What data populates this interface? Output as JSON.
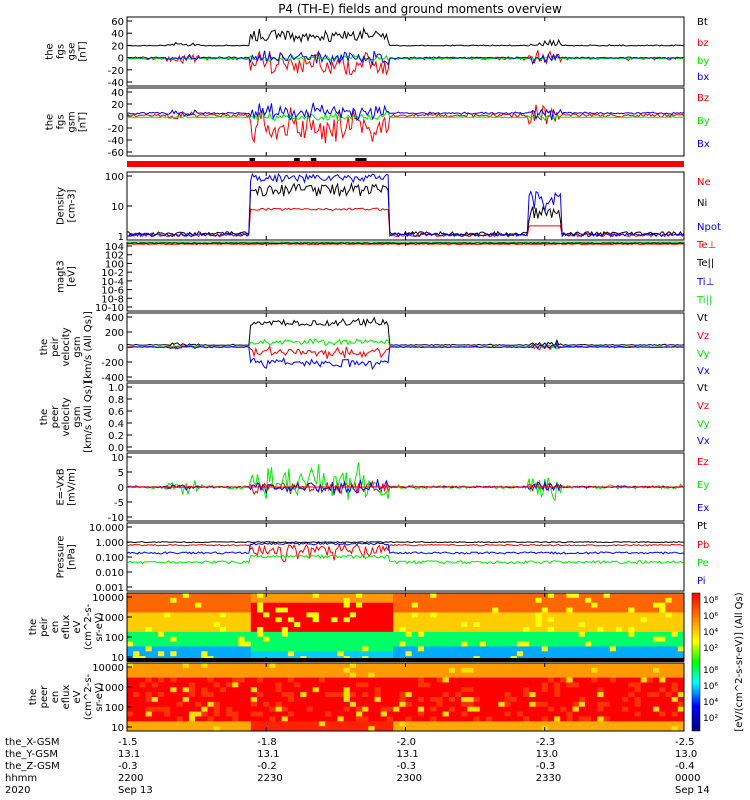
{
  "title": "P4 (TH-E) fields and ground moments overview",
  "colors": {
    "black": "#000000",
    "red": "#ff0000",
    "green": "#00ee00",
    "blue": "#0000ff"
  },
  "chart_data": [
    {
      "type": "line",
      "ylabel": [
        "the",
        "fgs",
        "gse",
        "[nT]"
      ],
      "yticks": [
        "60",
        "40",
        "20",
        "0",
        "-20",
        "-40"
      ],
      "ylim": [
        -40,
        60
      ],
      "legend": [
        {
          "name": "Bt",
          "color": "black"
        },
        {
          "name": "bz",
          "color": "red"
        },
        {
          "name": "by",
          "color": "green"
        },
        {
          "name": "bx",
          "color": "blue"
        }
      ]
    },
    {
      "type": "line",
      "ylabel": [
        "the",
        "fgs",
        "gsm",
        "[nT]"
      ],
      "yticks": [
        "40",
        "20",
        "0",
        "-20",
        "-40",
        "-60"
      ],
      "ylim": [
        -60,
        40
      ],
      "legend": [
        {
          "name": "Bz",
          "color": "red"
        },
        {
          "name": "By",
          "color": "green"
        },
        {
          "name": "Bx",
          "color": "blue"
        }
      ]
    },
    {
      "type": "line",
      "ylabel": [
        "Density",
        "[cm-3]"
      ],
      "yticks": [
        "100",
        "10",
        "1"
      ],
      "ylim": [
        1,
        200
      ],
      "log": true,
      "legend": [
        {
          "name": "Ne",
          "color": "red"
        },
        {
          "name": "Ni",
          "color": "black"
        },
        {
          "name": "Npot",
          "color": "blue"
        }
      ]
    },
    {
      "type": "line",
      "ylabel": [
        "magt3",
        "[eV]"
      ],
      "yticks": [
        "104",
        "102",
        "100",
        "10-2",
        "10-4",
        "10-6",
        "10-8",
        "10-10"
      ],
      "log": true,
      "legend": [
        {
          "name": "Te⊥",
          "color": "red"
        },
        {
          "name": "Te||",
          "color": "black"
        },
        {
          "name": "Ti⊥",
          "color": "blue"
        },
        {
          "name": "Ti||",
          "color": "green"
        }
      ]
    },
    {
      "type": "line",
      "ylabel": [
        "the",
        "peir",
        "velocity",
        "gsm",
        "[km/s (All Qs)]"
      ],
      "yticks": [
        "400",
        "200",
        "0",
        "-200",
        "-400"
      ],
      "ylim": [
        -400,
        400
      ],
      "legend": [
        {
          "name": "Vt",
          "color": "black"
        },
        {
          "name": "Vz",
          "color": "red"
        },
        {
          "name": "Vy",
          "color": "green"
        },
        {
          "name": "Vx",
          "color": "blue"
        }
      ]
    },
    {
      "type": "line",
      "ylabel": [
        "the",
        "peer",
        "velocity",
        "gsm",
        "[km/s (All Qs)]"
      ],
      "yticks": [
        "1.0",
        "0.8",
        "0.6",
        "0.4",
        "0.2",
        "0.0"
      ],
      "ylim": [
        0,
        1
      ],
      "legend": [
        {
          "name": "Vt",
          "color": "black"
        },
        {
          "name": "Vz",
          "color": "red"
        },
        {
          "name": "Vy",
          "color": "green"
        },
        {
          "name": "Vx",
          "color": "blue"
        }
      ]
    },
    {
      "type": "line",
      "ylabel": [
        "E=-VxB",
        "[mV/m]"
      ],
      "yticks": [
        "10",
        "5",
        "0",
        "-5",
        "-10"
      ],
      "ylim": [
        -10,
        10
      ],
      "legend": [
        {
          "name": "Ez",
          "color": "red"
        },
        {
          "name": "Ey",
          "color": "green"
        },
        {
          "name": "Ex",
          "color": "blue"
        }
      ]
    },
    {
      "type": "line",
      "ylabel": [
        "Pressure",
        "[nPa]"
      ],
      "yticks": [
        "10.000",
        "1.000",
        "0.100",
        "0.010",
        "0.001"
      ],
      "log": true,
      "legend": [
        {
          "name": "Pt",
          "color": "black"
        },
        {
          "name": "Pb",
          "color": "red"
        },
        {
          "name": "Pe",
          "color": "green"
        },
        {
          "name": "Pi",
          "color": "blue"
        }
      ]
    },
    {
      "type": "heatmap",
      "ylabel": [
        "the",
        "peir",
        "en",
        "eflux",
        "eV",
        "(cm^2-s-",
        "sr-eV)"
      ],
      "yticks": [
        "10000",
        "1000",
        "100",
        "10"
      ],
      "log": true
    },
    {
      "type": "heatmap",
      "ylabel": [
        "the",
        "peer",
        "en",
        "eflux",
        "eV",
        "(cm^2-s-",
        "sr-eV)"
      ],
      "yticks": [
        "10000",
        "1000",
        "100",
        "10"
      ],
      "log": true
    }
  ],
  "colorbar": {
    "label": "[eV/(cm^2-s-sr-eV)] (All Qs)",
    "ticks": [
      "10⁸",
      "10⁶",
      "10⁴",
      "10²"
    ]
  },
  "xaxis": {
    "row_labels": [
      "the_X-GSM",
      "the_Y-GSM",
      "the_Z-GSM",
      "hhmm",
      "2020"
    ],
    "ticks": [
      {
        "x": "-1.5",
        "y": "13.1",
        "z": "-0.3",
        "hhmm": "2200",
        "date": "Sep 13"
      },
      {
        "x": "-1.8",
        "y": "13.1",
        "z": "-0.2",
        "hhmm": "2230",
        "date": ""
      },
      {
        "x": "-2.0",
        "y": "13.1",
        "z": "-0.3",
        "hhmm": "2300",
        "date": ""
      },
      {
        "x": "-2.3",
        "y": "13.0",
        "z": "-0.3",
        "hhmm": "2330",
        "date": ""
      },
      {
        "x": "-2.5",
        "y": "13.0",
        "z": "-0.4",
        "hhmm": "0000",
        "date": "Sep 14"
      }
    ]
  }
}
